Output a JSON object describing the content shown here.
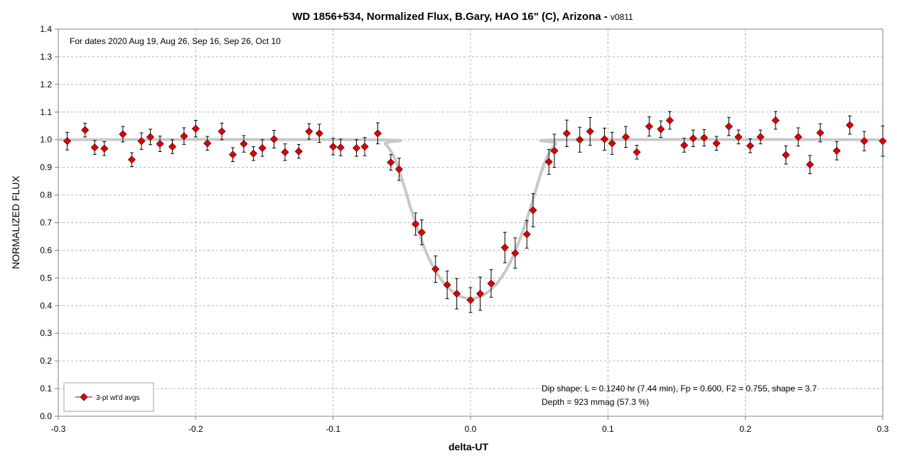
{
  "chart_data": {
    "type": "scatter",
    "title": "WD 1856+534, Normalized Flux, B.Gary, HAO 16\" (C), Arizona - ",
    "title_suffix": "v0811",
    "xlabel": "delta-UT",
    "ylabel": "NORMALIZED FLUX",
    "xlim": [
      -0.3,
      0.3
    ],
    "ylim": [
      0,
      1.4
    ],
    "x_ticks": [
      "-0.3",
      "-0.2",
      "-0.1",
      "0.0",
      "0.1",
      "0.2",
      "0.3"
    ],
    "y_ticks": [
      "0.0",
      "0.1",
      "0.2",
      "0.3",
      "0.4",
      "0.5",
      "0.6",
      "0.7",
      "0.8",
      "0.9",
      "1.0",
      "1.1",
      "1.2",
      "1.3",
      "1.4"
    ],
    "grid": true,
    "legend_position": "bottom-left",
    "annotations": {
      "dates": "For dates 2020 Aug 19, Aug 26, Sep 16, Sep 26, Oct 10",
      "dip_shape": "Dip shape:  L = 0.1240 hr (7.44 min), Fp = 0.600, F2 = 0.755, shape = 3.7",
      "depth": "Depth = 923 mmag (57.3 %)"
    },
    "series": [
      {
        "name": "3-pt wt'd avgs",
        "marker_color": "#e00000",
        "points": [
          {
            "x": -0.2935,
            "y": 0.995,
            "err": 0.032
          },
          {
            "x": -0.2805,
            "y": 1.035,
            "err": 0.025
          },
          {
            "x": -0.2735,
            "y": 0.972,
            "err": 0.025
          },
          {
            "x": -0.2665,
            "y": 0.968,
            "err": 0.025
          },
          {
            "x": -0.253,
            "y": 1.02,
            "err": 0.028
          },
          {
            "x": -0.2465,
            "y": 0.928,
            "err": 0.025
          },
          {
            "x": -0.2395,
            "y": 0.995,
            "err": 0.03
          },
          {
            "x": -0.233,
            "y": 1.01,
            "err": 0.028
          },
          {
            "x": -0.226,
            "y": 0.985,
            "err": 0.028
          },
          {
            "x": -0.217,
            "y": 0.975,
            "err": 0.025
          },
          {
            "x": -0.2085,
            "y": 1.013,
            "err": 0.03
          },
          {
            "x": -0.2,
            "y": 1.04,
            "err": 0.03
          },
          {
            "x": -0.1915,
            "y": 0.987,
            "err": 0.025
          },
          {
            "x": -0.181,
            "y": 1.03,
            "err": 0.03
          },
          {
            "x": -0.173,
            "y": 0.946,
            "err": 0.025
          },
          {
            "x": -0.165,
            "y": 0.985,
            "err": 0.03
          },
          {
            "x": -0.158,
            "y": 0.95,
            "err": 0.025
          },
          {
            "x": -0.1515,
            "y": 0.97,
            "err": 0.03
          },
          {
            "x": -0.143,
            "y": 1.002,
            "err": 0.032
          },
          {
            "x": -0.135,
            "y": 0.955,
            "err": 0.03
          },
          {
            "x": -0.125,
            "y": 0.958,
            "err": 0.025
          },
          {
            "x": -0.1175,
            "y": 1.03,
            "err": 0.028
          },
          {
            "x": -0.11,
            "y": 1.023,
            "err": 0.033
          },
          {
            "x": -0.1,
            "y": 0.975,
            "err": 0.03
          },
          {
            "x": -0.0945,
            "y": 0.972,
            "err": 0.03
          },
          {
            "x": -0.083,
            "y": 0.97,
            "err": 0.03
          },
          {
            "x": -0.077,
            "y": 0.975,
            "err": 0.033
          },
          {
            "x": -0.0675,
            "y": 1.023,
            "err": 0.038
          },
          {
            "x": -0.058,
            "y": 0.918,
            "err": 0.028
          },
          {
            "x": -0.052,
            "y": 0.893,
            "err": 0.04
          },
          {
            "x": -0.04,
            "y": 0.695,
            "err": 0.04
          },
          {
            "x": -0.0355,
            "y": 0.665,
            "err": 0.045
          },
          {
            "x": -0.0255,
            "y": 0.532,
            "err": 0.048
          },
          {
            "x": -0.017,
            "y": 0.475,
            "err": 0.05
          },
          {
            "x": -0.01,
            "y": 0.443,
            "err": 0.055
          },
          {
            "x": 0.0,
            "y": 0.42,
            "err": 0.045
          },
          {
            "x": 0.007,
            "y": 0.443,
            "err": 0.06
          },
          {
            "x": 0.015,
            "y": 0.48,
            "err": 0.05
          },
          {
            "x": 0.025,
            "y": 0.61,
            "err": 0.055
          },
          {
            "x": 0.0325,
            "y": 0.59,
            "err": 0.055
          },
          {
            "x": 0.041,
            "y": 0.658,
            "err": 0.05
          },
          {
            "x": 0.0455,
            "y": 0.745,
            "err": 0.06
          },
          {
            "x": 0.057,
            "y": 0.92,
            "err": 0.045
          },
          {
            "x": 0.061,
            "y": 0.96,
            "err": 0.06
          },
          {
            "x": 0.07,
            "y": 1.023,
            "err": 0.048
          },
          {
            "x": 0.0795,
            "y": 1.0,
            "err": 0.045
          },
          {
            "x": 0.087,
            "y": 1.03,
            "err": 0.05
          },
          {
            "x": 0.0975,
            "y": 1.002,
            "err": 0.04
          },
          {
            "x": 0.103,
            "y": 0.987,
            "err": 0.04
          },
          {
            "x": 0.113,
            "y": 1.01,
            "err": 0.038
          },
          {
            "x": 0.121,
            "y": 0.955,
            "err": 0.025
          },
          {
            "x": 0.13,
            "y": 1.048,
            "err": 0.035
          },
          {
            "x": 0.1385,
            "y": 1.038,
            "err": 0.03
          },
          {
            "x": 0.145,
            "y": 1.07,
            "err": 0.032
          },
          {
            "x": 0.1555,
            "y": 0.98,
            "err": 0.025
          },
          {
            "x": 0.162,
            "y": 1.005,
            "err": 0.03
          },
          {
            "x": 0.17,
            "y": 1.007,
            "err": 0.03
          },
          {
            "x": 0.179,
            "y": 0.987,
            "err": 0.025
          },
          {
            "x": 0.188,
            "y": 1.048,
            "err": 0.033
          },
          {
            "x": 0.195,
            "y": 1.01,
            "err": 0.025
          },
          {
            "x": 0.2035,
            "y": 0.978,
            "err": 0.025
          },
          {
            "x": 0.211,
            "y": 1.01,
            "err": 0.025
          },
          {
            "x": 0.222,
            "y": 1.07,
            "err": 0.032
          },
          {
            "x": 0.2295,
            "y": 0.945,
            "err": 0.033
          },
          {
            "x": 0.2385,
            "y": 1.01,
            "err": 0.033
          },
          {
            "x": 0.247,
            "y": 0.91,
            "err": 0.033
          },
          {
            "x": 0.2545,
            "y": 1.025,
            "err": 0.033
          },
          {
            "x": 0.2665,
            "y": 0.96,
            "err": 0.033
          },
          {
            "x": 0.276,
            "y": 1.053,
            "err": 0.033
          },
          {
            "x": 0.2865,
            "y": 0.995,
            "err": 0.035
          },
          {
            "x": 0.3,
            "y": 0.995,
            "err": 0.055
          }
        ]
      }
    ],
    "model_curve": {
      "color": "#c8c8c8",
      "points": [
        [
          -0.3,
          1.0
        ],
        [
          -0.07,
          1.0
        ],
        [
          -0.062,
          0.985
        ],
        [
          -0.055,
          0.93
        ],
        [
          -0.05,
          0.86
        ],
        [
          -0.044,
          0.76
        ],
        [
          -0.038,
          0.67
        ],
        [
          -0.032,
          0.59
        ],
        [
          -0.026,
          0.53
        ],
        [
          -0.02,
          0.485
        ],
        [
          -0.014,
          0.455
        ],
        [
          -0.008,
          0.435
        ],
        [
          0.0,
          0.425
        ],
        [
          0.008,
          0.435
        ],
        [
          0.014,
          0.455
        ],
        [
          0.02,
          0.485
        ],
        [
          0.026,
          0.53
        ],
        [
          0.032,
          0.59
        ],
        [
          0.038,
          0.67
        ],
        [
          0.044,
          0.76
        ],
        [
          0.05,
          0.86
        ],
        [
          0.055,
          0.93
        ],
        [
          0.062,
          0.985
        ],
        [
          0.07,
          1.0
        ],
        [
          0.3,
          1.0
        ]
      ]
    }
  }
}
